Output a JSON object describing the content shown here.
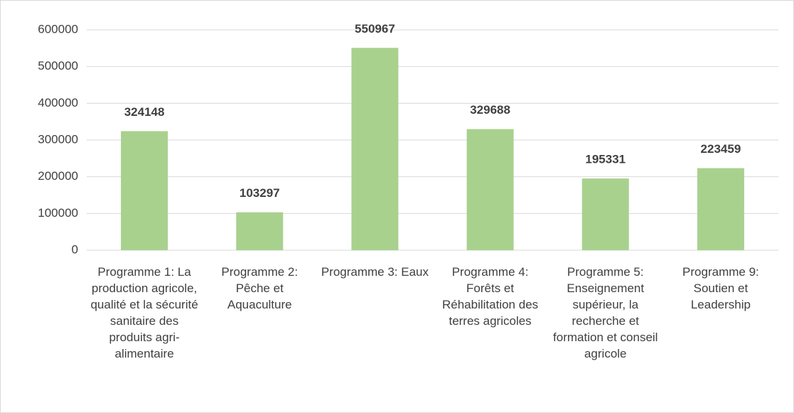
{
  "chart_data": {
    "type": "bar",
    "categories": [
      "Programme 1: La production agricole, qualité et la sécurité sanitaire des produits agri-alimentaire",
      "Programme 2: Pêche et Aquaculture",
      "Programme 3: Eaux",
      "Programme 4: Forêts et Réhabilitation des terres agricoles",
      "Programme 5: Enseignement supérieur, la recherche et formation et conseil agricole",
      "Programme 9: Soutien et Leadership"
    ],
    "values": [
      324148,
      103297,
      550967,
      329688,
      195331,
      223459
    ],
    "color": "#a9d18e",
    "ylim": [
      0,
      600000
    ],
    "yticks": [
      0,
      100000,
      200000,
      300000,
      400000,
      500000,
      600000
    ],
    "grid": true
  }
}
